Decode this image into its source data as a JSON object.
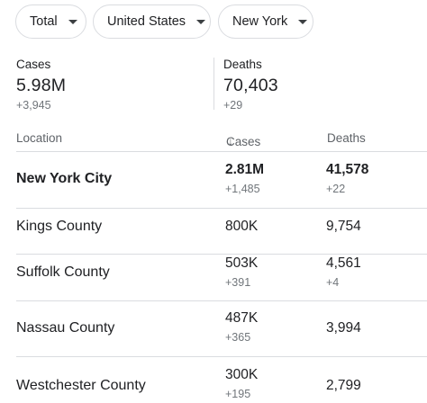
{
  "filters": {
    "metric": "Total",
    "country": "United States",
    "region": "New York"
  },
  "summary": {
    "cases": {
      "label": "Cases",
      "value": "5.98M",
      "delta": "+3,945"
    },
    "deaths": {
      "label": "Deaths",
      "value": "70,403",
      "delta": "+29"
    }
  },
  "table": {
    "headers": {
      "location": "Location",
      "cases": "Cases",
      "deaths": "Deaths"
    },
    "sort_indicator": "↓",
    "rows": [
      {
        "location": "New York City",
        "cases": "2.81M",
        "cases_delta": "+1,485",
        "deaths": "41,578",
        "deaths_delta": "+22"
      },
      {
        "location": "Kings County",
        "cases": "800K",
        "cases_delta": "",
        "deaths": "9,754",
        "deaths_delta": ""
      },
      {
        "location": "Suffolk County",
        "cases": "503K",
        "cases_delta": "+391",
        "deaths": "4,561",
        "deaths_delta": "+4"
      },
      {
        "location": "Nassau County",
        "cases": "487K",
        "cases_delta": "+365",
        "deaths": "3,994",
        "deaths_delta": ""
      },
      {
        "location": "Westchester County",
        "cases": "300K",
        "cases_delta": "+195",
        "deaths": "2,799",
        "deaths_delta": ""
      }
    ]
  }
}
